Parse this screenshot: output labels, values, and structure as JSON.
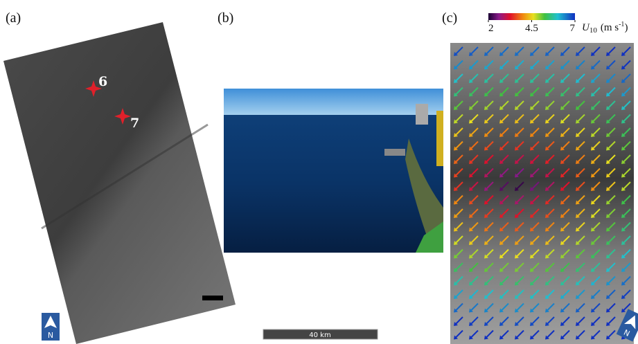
{
  "panels": [
    {
      "label": "(a)",
      "markers": [
        "6",
        "7"
      ]
    },
    {
      "label": "(b)",
      "scale_bar": "40 km"
    },
    {
      "label": "(c)",
      "colorbar": {
        "ticks": [
          2,
          4.5,
          7
        ],
        "symbol": "U",
        "subscript": "10",
        "unit": "(m s",
        "superscript": "-1",
        "unit_end": ")"
      }
    }
  ],
  "north_label": "N"
}
